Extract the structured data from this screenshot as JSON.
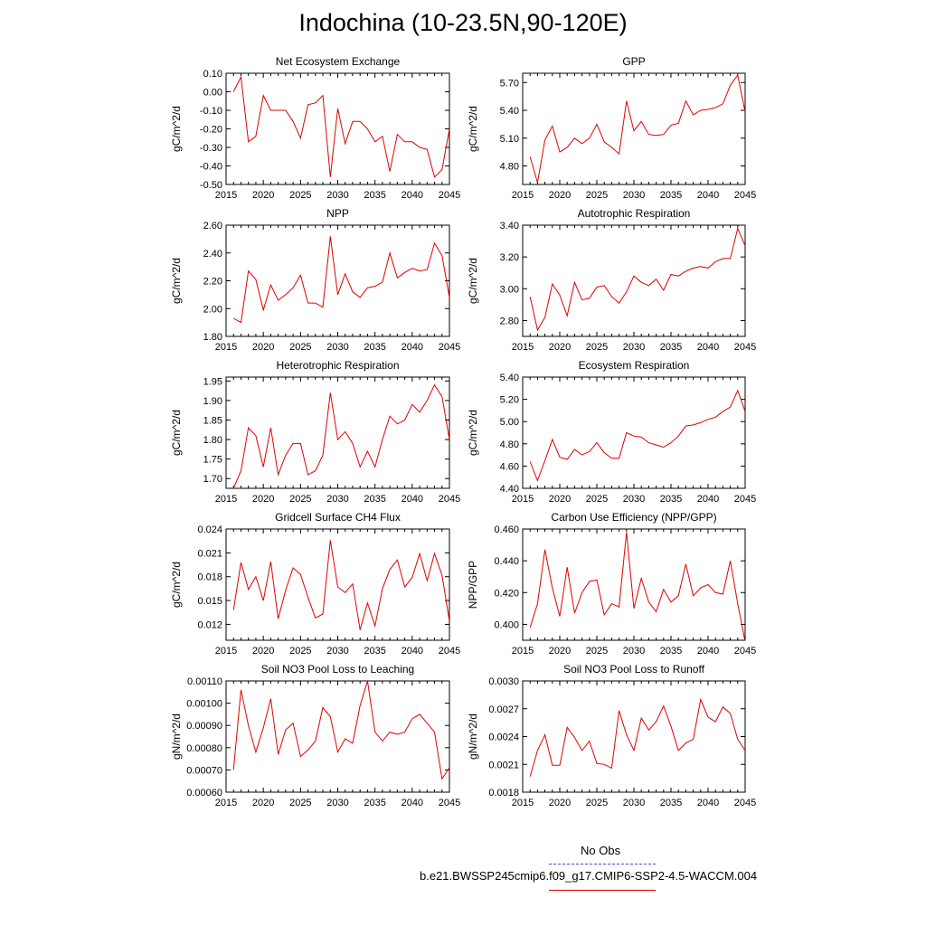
{
  "page_title": "Indochina (10-23.5N,90-120E)",
  "legend": {
    "obs_label": "No Obs",
    "obs_color": "#4a4ad8",
    "model_label": "b.e21.BWSSP245cmip6.f09_g17.CMIP6-SSP2-4.5-WACCM.004",
    "model_color": "#e00000"
  },
  "chart_data": [
    {
      "type": "line",
      "title": "Net Ecosystem Exchange",
      "ylabel": "gC/m^2/d",
      "xlim": [
        2015,
        2045
      ],
      "xticks": [
        2015,
        2020,
        2025,
        2030,
        2035,
        2040,
        2045
      ],
      "ylim": [
        -0.5,
        0.1
      ],
      "yticks": [
        "0.10",
        "0.00",
        "-0.10",
        "-0.20",
        "-0.30",
        "-0.40",
        "-0.50"
      ],
      "x": [
        2016,
        2017,
        2018,
        2019,
        2020,
        2021,
        2022,
        2023,
        2024,
        2025,
        2026,
        2027,
        2028,
        2029,
        2030,
        2031,
        2032,
        2033,
        2034,
        2035,
        2036,
        2037,
        2038,
        2039,
        2040,
        2041,
        2042,
        2043,
        2044,
        2045
      ],
      "values": [
        0.0,
        0.08,
        -0.27,
        -0.24,
        -0.02,
        -0.1,
        -0.1,
        -0.1,
        -0.16,
        -0.25,
        -0.07,
        -0.06,
        -0.02,
        -0.46,
        -0.09,
        -0.28,
        -0.16,
        -0.16,
        -0.2,
        -0.27,
        -0.24,
        -0.43,
        -0.23,
        -0.27,
        -0.27,
        -0.3,
        -0.31,
        -0.46,
        -0.42,
        -0.2
      ]
    },
    {
      "type": "line",
      "title": "GPP",
      "ylabel": "gC/m^2/d",
      "xlim": [
        2015,
        2045
      ],
      "xticks": [
        2015,
        2020,
        2025,
        2030,
        2035,
        2040,
        2045
      ],
      "ylim": [
        4.6,
        5.8
      ],
      "yticks": [
        "5.70",
        "5.40",
        "5.10",
        "4.80"
      ],
      "x": [
        2016,
        2017,
        2018,
        2019,
        2020,
        2021,
        2022,
        2023,
        2024,
        2025,
        2026,
        2027,
        2028,
        2029,
        2030,
        2031,
        2032,
        2033,
        2034,
        2035,
        2036,
        2037,
        2038,
        2039,
        2040,
        2041,
        2042,
        2043,
        2044,
        2045
      ],
      "values": [
        4.9,
        4.62,
        5.08,
        5.23,
        4.95,
        5.0,
        5.1,
        5.04,
        5.1,
        5.25,
        5.06,
        5.0,
        4.93,
        5.5,
        5.18,
        5.28,
        5.14,
        5.13,
        5.14,
        5.24,
        5.26,
        5.5,
        5.35,
        5.4,
        5.41,
        5.43,
        5.47,
        5.67,
        5.78,
        5.38
      ]
    },
    {
      "type": "line",
      "title": "NPP",
      "ylabel": "gC/m^2/d",
      "xlim": [
        2015,
        2045
      ],
      "xticks": [
        2015,
        2020,
        2025,
        2030,
        2035,
        2040,
        2045
      ],
      "ylim": [
        1.8,
        2.6
      ],
      "yticks": [
        "2.60",
        "2.40",
        "2.20",
        "2.00",
        "1.80"
      ],
      "x": [
        2016,
        2017,
        2018,
        2019,
        2020,
        2021,
        2022,
        2023,
        2024,
        2025,
        2026,
        2027,
        2028,
        2029,
        2030,
        2031,
        2032,
        2033,
        2034,
        2035,
        2036,
        2037,
        2038,
        2039,
        2040,
        2041,
        2042,
        2043,
        2044,
        2045
      ],
      "values": [
        1.93,
        1.9,
        2.27,
        2.21,
        1.99,
        2.17,
        2.06,
        2.1,
        2.15,
        2.24,
        2.04,
        2.04,
        2.01,
        2.52,
        2.1,
        2.25,
        2.12,
        2.08,
        2.15,
        2.16,
        2.19,
        2.4,
        2.22,
        2.26,
        2.29,
        2.27,
        2.28,
        2.47,
        2.38,
        2.08
      ]
    },
    {
      "type": "line",
      "title": "Autotrophic Respiration",
      "ylabel": "gC/m^2/d",
      "xlim": [
        2015,
        2045
      ],
      "xticks": [
        2015,
        2020,
        2025,
        2030,
        2035,
        2040,
        2045
      ],
      "ylim": [
        2.7,
        3.4
      ],
      "yticks": [
        "3.40",
        "3.20",
        "3.00",
        "2.80"
      ],
      "x": [
        2016,
        2017,
        2018,
        2019,
        2020,
        2021,
        2022,
        2023,
        2024,
        2025,
        2026,
        2027,
        2028,
        2029,
        2030,
        2031,
        2032,
        2033,
        2034,
        2035,
        2036,
        2037,
        2038,
        2039,
        2040,
        2041,
        2042,
        2043,
        2044,
        2045
      ],
      "values": [
        2.95,
        2.74,
        2.82,
        3.03,
        2.96,
        2.83,
        3.04,
        2.93,
        2.94,
        3.01,
        3.02,
        2.95,
        2.91,
        2.98,
        3.08,
        3.04,
        3.02,
        3.06,
        2.99,
        3.09,
        3.08,
        3.11,
        3.13,
        3.14,
        3.13,
        3.17,
        3.19,
        3.19,
        3.38,
        3.27
      ]
    },
    {
      "type": "line",
      "title": "Heterotrophic Respiration",
      "ylabel": "gC/m^2/d",
      "xlim": [
        2015,
        2045
      ],
      "xticks": [
        2015,
        2020,
        2025,
        2030,
        2035,
        2040,
        2045
      ],
      "ylim": [
        1.675,
        1.96
      ],
      "yticks": [
        "1.95",
        "1.90",
        "1.85",
        "1.80",
        "1.75",
        "1.70"
      ],
      "x": [
        2016,
        2017,
        2018,
        2019,
        2020,
        2021,
        2022,
        2023,
        2024,
        2025,
        2026,
        2027,
        2028,
        2029,
        2030,
        2031,
        2032,
        2033,
        2034,
        2035,
        2036,
        2037,
        2038,
        2039,
        2040,
        2041,
        2042,
        2043,
        2044,
        2045
      ],
      "values": [
        1.675,
        1.72,
        1.83,
        1.81,
        1.73,
        1.83,
        1.71,
        1.76,
        1.79,
        1.79,
        1.71,
        1.72,
        1.76,
        1.92,
        1.8,
        1.82,
        1.79,
        1.73,
        1.77,
        1.73,
        1.8,
        1.86,
        1.84,
        1.85,
        1.89,
        1.87,
        1.9,
        1.94,
        1.91,
        1.8
      ]
    },
    {
      "type": "line",
      "title": "Ecosystem Respiration",
      "ylabel": "gC/m^2/d",
      "xlim": [
        2015,
        2045
      ],
      "xticks": [
        2015,
        2020,
        2025,
        2030,
        2035,
        2040,
        2045
      ],
      "ylim": [
        4.4,
        5.4
      ],
      "yticks": [
        "5.40",
        "5.20",
        "5.00",
        "4.80",
        "4.60",
        "4.40"
      ],
      "x": [
        2016,
        2017,
        2018,
        2019,
        2020,
        2021,
        2022,
        2023,
        2024,
        2025,
        2026,
        2027,
        2028,
        2029,
        2030,
        2031,
        2032,
        2033,
        2034,
        2035,
        2036,
        2037,
        2038,
        2039,
        2040,
        2041,
        2042,
        2043,
        2044,
        2045
      ],
      "values": [
        4.64,
        4.47,
        4.65,
        4.84,
        4.68,
        4.66,
        4.75,
        4.7,
        4.73,
        4.81,
        4.72,
        4.67,
        4.67,
        4.9,
        4.87,
        4.86,
        4.81,
        4.79,
        4.77,
        4.81,
        4.87,
        4.96,
        4.97,
        4.99,
        5.02,
        5.04,
        5.09,
        5.13,
        5.28,
        5.09
      ]
    },
    {
      "type": "line",
      "title": "Gridcell Surface CH4 Flux",
      "ylabel": "gC/m^2/d",
      "xlim": [
        2015,
        2045
      ],
      "xticks": [
        2015,
        2020,
        2025,
        2030,
        2035,
        2040,
        2045
      ],
      "ylim": [
        0.01,
        0.024
      ],
      "yticks": [
        "0.024",
        "0.021",
        "0.018",
        "0.015",
        "0.012"
      ],
      "x": [
        2016,
        2017,
        2018,
        2019,
        2020,
        2021,
        2022,
        2023,
        2024,
        2025,
        2026,
        2027,
        2028,
        2029,
        2030,
        2031,
        2032,
        2033,
        2034,
        2035,
        2036,
        2037,
        2038,
        2039,
        2040,
        2041,
        2042,
        2043,
        2044,
        2045
      ],
      "values": [
        0.0138,
        0.0198,
        0.0164,
        0.018,
        0.015,
        0.0199,
        0.0127,
        0.0163,
        0.0191,
        0.0183,
        0.0154,
        0.0128,
        0.0133,
        0.0226,
        0.0167,
        0.016,
        0.0171,
        0.0113,
        0.0147,
        0.0118,
        0.0165,
        0.0189,
        0.0201,
        0.0167,
        0.0179,
        0.0209,
        0.0175,
        0.0209,
        0.0182,
        0.0124
      ]
    },
    {
      "type": "line",
      "title": "Carbon Use Efficiency (NPP/GPP)",
      "ylabel": "NPP/GPP",
      "xlim": [
        2015,
        2045
      ],
      "xticks": [
        2015,
        2020,
        2025,
        2030,
        2035,
        2040,
        2045
      ],
      "ylim": [
        0.39,
        0.46
      ],
      "yticks": [
        "0.460",
        "0.440",
        "0.420",
        "0.400"
      ],
      "x": [
        2016,
        2017,
        2018,
        2019,
        2020,
        2021,
        2022,
        2023,
        2024,
        2025,
        2026,
        2027,
        2028,
        2029,
        2030,
        2031,
        2032,
        2033,
        2034,
        2035,
        2036,
        2037,
        2038,
        2039,
        2040,
        2041,
        2042,
        2043,
        2044,
        2045
      ],
      "values": [
        0.398,
        0.413,
        0.447,
        0.423,
        0.405,
        0.436,
        0.407,
        0.42,
        0.427,
        0.428,
        0.406,
        0.413,
        0.411,
        0.458,
        0.41,
        0.429,
        0.414,
        0.408,
        0.422,
        0.414,
        0.418,
        0.438,
        0.418,
        0.423,
        0.425,
        0.42,
        0.419,
        0.44,
        0.413,
        0.389
      ]
    },
    {
      "type": "line",
      "title": "Soil NO3 Pool Loss to Leaching",
      "ylabel": "gN/m^2/d",
      "xlim": [
        2015,
        2045
      ],
      "xticks": [
        2015,
        2020,
        2025,
        2030,
        2035,
        2040,
        2045
      ],
      "ylim": [
        0.0006,
        0.0011
      ],
      "yticks": [
        "0.00110",
        "0.00100",
        "0.00090",
        "0.00080",
        "0.00070",
        "0.00060"
      ],
      "x": [
        2016,
        2017,
        2018,
        2019,
        2020,
        2021,
        2022,
        2023,
        2024,
        2025,
        2026,
        2027,
        2028,
        2029,
        2030,
        2031,
        2032,
        2033,
        2034,
        2035,
        2036,
        2037,
        2038,
        2039,
        2040,
        2041,
        2042,
        2043,
        2044,
        2045
      ],
      "values": [
        0.0007,
        0.00106,
        0.0009,
        0.00078,
        0.00089,
        0.00102,
        0.00077,
        0.00088,
        0.00091,
        0.00076,
        0.00079,
        0.00083,
        0.00098,
        0.00094,
        0.00078,
        0.00084,
        0.00082,
        0.00099,
        0.0011,
        0.00087,
        0.00083,
        0.00087,
        0.00086,
        0.00087,
        0.00093,
        0.00095,
        0.00091,
        0.00087,
        0.00066,
        0.00071
      ]
    },
    {
      "type": "line",
      "title": "Soil NO3 Pool Loss to Runoff",
      "ylabel": "gN/m^2/d",
      "xlim": [
        2015,
        2045
      ],
      "xticks": [
        2015,
        2020,
        2025,
        2030,
        2035,
        2040,
        2045
      ],
      "ylim": [
        0.0018,
        0.003
      ],
      "yticks": [
        "0.0030",
        "0.0027",
        "0.0024",
        "0.0021",
        "0.0018"
      ],
      "x": [
        2016,
        2017,
        2018,
        2019,
        2020,
        2021,
        2022,
        2023,
        2024,
        2025,
        2026,
        2027,
        2028,
        2029,
        2030,
        2031,
        2032,
        2033,
        2034,
        2035,
        2036,
        2037,
        2038,
        2039,
        2040,
        2041,
        2042,
        2043,
        2044,
        2045
      ],
      "values": [
        0.00197,
        0.00225,
        0.00242,
        0.00209,
        0.00209,
        0.0025,
        0.00239,
        0.00225,
        0.00235,
        0.00211,
        0.0021,
        0.00206,
        0.00268,
        0.00242,
        0.00225,
        0.0026,
        0.00247,
        0.00256,
        0.00273,
        0.00251,
        0.00225,
        0.00233,
        0.00237,
        0.0028,
        0.00261,
        0.00256,
        0.00272,
        0.00265,
        0.00237,
        0.00225
      ]
    }
  ]
}
